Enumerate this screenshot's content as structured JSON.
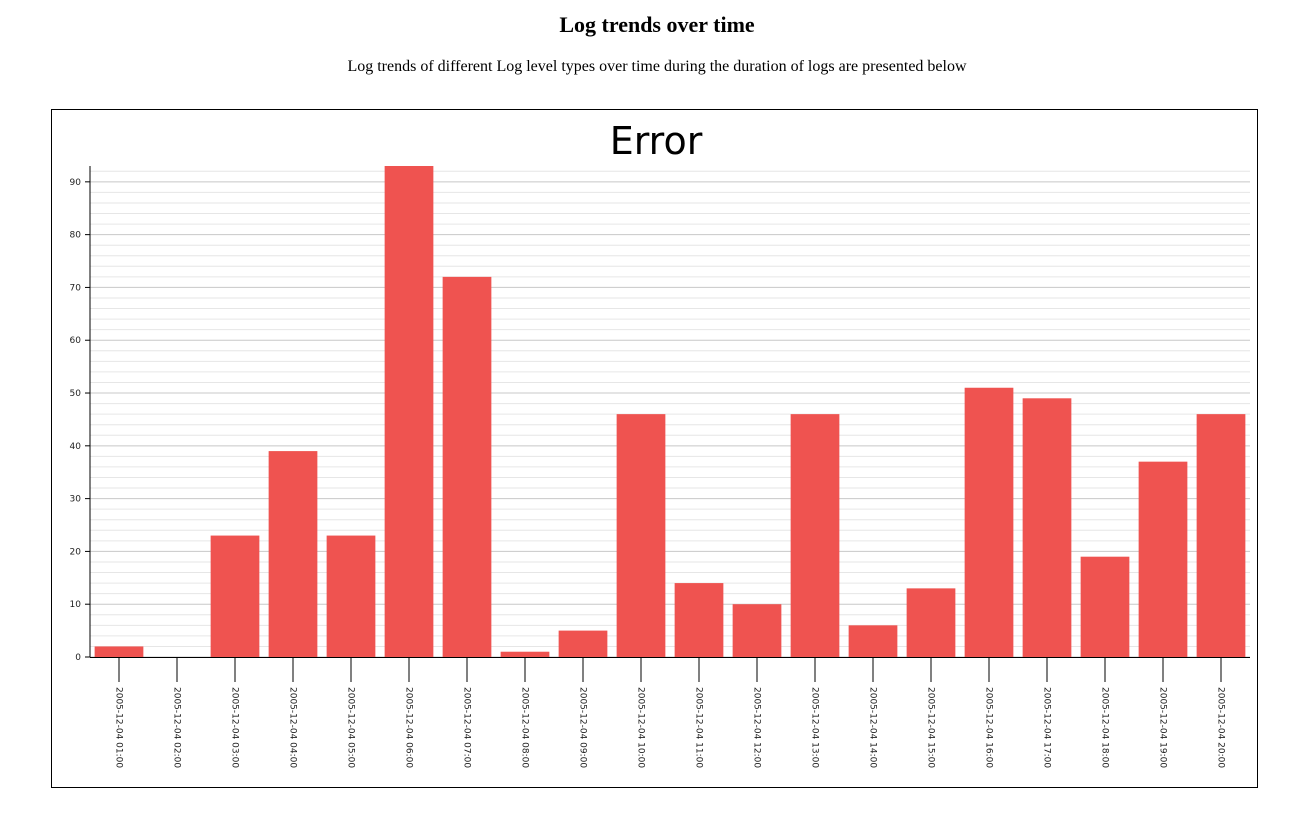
{
  "page": {
    "title": "Log trends over time",
    "subtitle": "Log trends of different Log level types over time during the duration of logs are presented below"
  },
  "colors": {
    "bar": "#ef5350",
    "axis": "#000000",
    "grid_major": "#c8c8c8",
    "grid_minor": "#e6e6e6"
  },
  "chart_data": {
    "type": "bar",
    "title": "Error",
    "xlabel": "",
    "ylabel": "",
    "categories": [
      "2005-12-04 01:00",
      "2005-12-04 02:00",
      "2005-12-04 03:00",
      "2005-12-04 04:00",
      "2005-12-04 05:00",
      "2005-12-04 06:00",
      "2005-12-04 07:00",
      "2005-12-04 08:00",
      "2005-12-04 09:00",
      "2005-12-04 10:00",
      "2005-12-04 11:00",
      "2005-12-04 12:00",
      "2005-12-04 13:00",
      "2005-12-04 14:00",
      "2005-12-04 15:00",
      "2005-12-04 16:00",
      "2005-12-04 17:00",
      "2005-12-04 18:00",
      "2005-12-04 19:00",
      "2005-12-04 20:00"
    ],
    "values": [
      2,
      0,
      23,
      39,
      23,
      93,
      72,
      1,
      5,
      46,
      14,
      10,
      46,
      6,
      13,
      51,
      49,
      19,
      37,
      46
    ],
    "yticks": [
      0,
      10,
      20,
      30,
      40,
      50,
      60,
      70,
      80,
      90
    ],
    "ylim": [
      0,
      93
    ],
    "grid": true,
    "legend": "none"
  }
}
